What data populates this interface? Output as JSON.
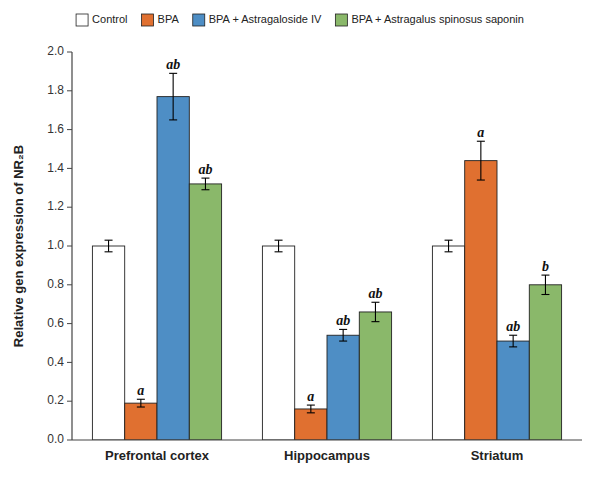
{
  "chart_data": {
    "type": "bar",
    "categories": [
      "Prefrontal cortex",
      "Hippocampus",
      "Striatum"
    ],
    "series": [
      {
        "name": "Control",
        "color": "#ffffff",
        "values": [
          1.0,
          1.0,
          1.0
        ],
        "errors": [
          0.03,
          0.03,
          0.03
        ],
        "annotations": [
          null,
          null,
          null
        ]
      },
      {
        "name": "BPA",
        "color": "#e07030",
        "values": [
          0.19,
          0.16,
          1.44
        ],
        "errors": [
          0.02,
          0.02,
          0.1
        ],
        "annotations": [
          "a",
          "a",
          "a"
        ]
      },
      {
        "name": "BPA + Astragaloside IV",
        "color": "#4e8ec5",
        "values": [
          1.77,
          0.54,
          0.51
        ],
        "errors": [
          0.12,
          0.03,
          0.03
        ],
        "annotations": [
          "ab",
          "ab",
          "ab"
        ]
      },
      {
        "name": "BPA + Astragalus spinosus saponin",
        "color": "#8ab86a",
        "values": [
          1.32,
          0.66,
          0.8
        ],
        "errors": [
          0.03,
          0.05,
          0.05
        ],
        "annotations": [
          "ab",
          "ab",
          "b"
        ]
      }
    ],
    "ylabel": "Relative gen expression of NR₂B",
    "ylim": [
      0.0,
      2.0
    ],
    "yticks": [
      {
        "value": 0.0,
        "label": "0.0"
      },
      0.2,
      0.4,
      0.6,
      0.8,
      {
        "value": 1.0,
        "label": "1.0"
      },
      1.2,
      1.4,
      1.6,
      1.8,
      {
        "value": 2.0,
        "label": "2.0"
      }
    ],
    "grid": false,
    "legend": "top"
  }
}
